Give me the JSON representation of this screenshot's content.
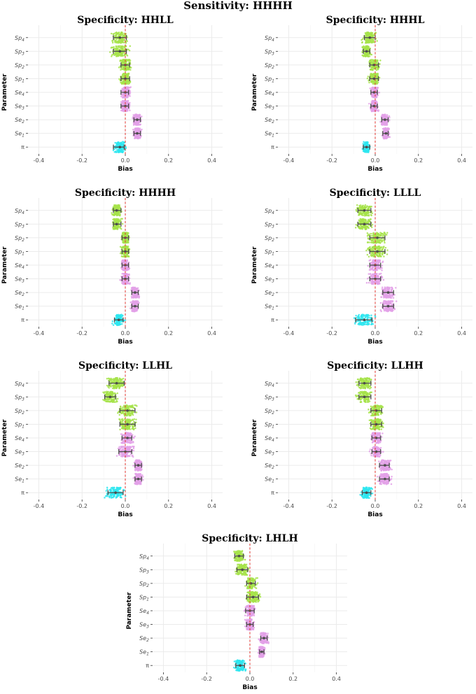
{
  "figure": {
    "main_title": "Sensitivity: HHHH"
  },
  "colors": {
    "Sp": "#a6e34a",
    "Se": "#e3a1e8",
    "pi": "#2ee6f0",
    "ref_line": "#e3342f",
    "errorbar": "#4d4d4d",
    "grid": "#ebebeb"
  },
  "chart_data": [
    {
      "type": "forest",
      "title": "Specificity: HHLL",
      "xlabel": "Bias",
      "ylabel": "Parameter",
      "xlim": [
        -0.45,
        0.45
      ],
      "xticks": [
        "-0.4",
        "-0.2",
        "0.0",
        "0.2",
        "0.4"
      ],
      "grid": true,
      "reference_line": 0,
      "parameters": [
        "Sp4",
        "Sp3",
        "Sp2",
        "Sp1",
        "Se4",
        "Se3",
        "Se2",
        "Se1",
        "π"
      ],
      "estimate": [
        -0.025,
        -0.025,
        0.0,
        0.0,
        0.0,
        0.0,
        0.055,
        0.055,
        -0.025
      ],
      "lower": [
        -0.055,
        -0.055,
        -0.02,
        -0.02,
        -0.02,
        -0.02,
        0.04,
        0.04,
        -0.055
      ],
      "upper": [
        0.005,
        0.005,
        0.02,
        0.02,
        0.015,
        0.015,
        0.07,
        0.07,
        -0.005
      ]
    },
    {
      "type": "forest",
      "title": "Specificity: HHHL",
      "xlabel": "Bias",
      "ylabel": "Parameter",
      "xlim": [
        -0.45,
        0.45
      ],
      "xticks": [
        "-0.4",
        "-0.2",
        "0.0",
        "0.2",
        "0.4"
      ],
      "grid": true,
      "reference_line": 0,
      "parameters": [
        "Sp4",
        "Sp3",
        "Sp2",
        "Sp1",
        "Se4",
        "Se3",
        "Se2",
        "Se1",
        "π"
      ],
      "estimate": [
        -0.025,
        -0.04,
        -0.005,
        -0.005,
        -0.005,
        -0.005,
        0.045,
        0.05,
        -0.04
      ],
      "lower": [
        -0.05,
        -0.055,
        -0.025,
        -0.025,
        -0.02,
        -0.02,
        0.03,
        0.035,
        -0.055
      ],
      "upper": [
        0.0,
        -0.025,
        0.015,
        0.015,
        0.01,
        0.01,
        0.06,
        0.06,
        -0.025
      ]
    },
    {
      "type": "forest",
      "title": "Specificity: HHHH",
      "xlabel": "Bias",
      "ylabel": "Parameter",
      "xlim": [
        -0.45,
        0.45
      ],
      "xticks": [
        "-0.4",
        "-0.2",
        "0.0",
        "0.2",
        "0.4"
      ],
      "grid": true,
      "reference_line": 0,
      "parameters": [
        "Sp4",
        "Sp3",
        "Sp2",
        "Sp1",
        "Se4",
        "Se3",
        "Se2",
        "Se1",
        "π"
      ],
      "estimate": [
        -0.04,
        -0.04,
        0.0,
        0.0,
        0.0,
        0.0,
        0.045,
        0.045,
        -0.03
      ],
      "lower": [
        -0.055,
        -0.055,
        -0.015,
        -0.015,
        -0.015,
        -0.015,
        0.03,
        0.03,
        -0.05
      ],
      "upper": [
        -0.02,
        -0.02,
        0.015,
        0.015,
        0.015,
        0.015,
        0.06,
        0.06,
        -0.01
      ]
    },
    {
      "type": "forest",
      "title": "Specificity: LLLL",
      "xlabel": "Bias",
      "ylabel": "Parameter",
      "xlim": [
        -0.45,
        0.45
      ],
      "xticks": [
        "-0.4",
        "-0.2",
        "0.0",
        "0.2",
        "0.4"
      ],
      "grid": true,
      "reference_line": 0,
      "parameters": [
        "Sp4",
        "Sp3",
        "Sp2",
        "Sp1",
        "Se4",
        "Se3",
        "Se2",
        "Se1",
        "π"
      ],
      "estimate": [
        -0.05,
        -0.05,
        0.01,
        0.01,
        0.0,
        0.0,
        0.06,
        0.06,
        -0.05
      ],
      "lower": [
        -0.08,
        -0.08,
        -0.025,
        -0.025,
        -0.025,
        -0.025,
        0.035,
        0.035,
        -0.09
      ],
      "upper": [
        -0.02,
        -0.02,
        0.045,
        0.045,
        0.025,
        0.025,
        0.085,
        0.085,
        -0.015
      ]
    },
    {
      "type": "forest",
      "title": "Specificity: LLHL",
      "xlabel": "Bias",
      "ylabel": "Parameter",
      "xlim": [
        -0.45,
        0.45
      ],
      "xticks": [
        "-0.4",
        "-0.2",
        "0.0",
        "0.2",
        "0.4"
      ],
      "grid": true,
      "reference_line": 0,
      "parameters": [
        "Sp4",
        "Sp3",
        "Sp2",
        "Sp1",
        "Se4",
        "Se3",
        "Se2",
        "Se1",
        "π"
      ],
      "estimate": [
        -0.04,
        -0.07,
        0.01,
        0.01,
        0.01,
        0.0,
        0.06,
        0.06,
        -0.045
      ],
      "lower": [
        -0.075,
        -0.095,
        -0.025,
        -0.025,
        -0.015,
        -0.03,
        0.045,
        0.045,
        -0.08
      ],
      "upper": [
        -0.005,
        -0.045,
        0.045,
        0.045,
        0.03,
        0.03,
        0.075,
        0.075,
        -0.01
      ]
    },
    {
      "type": "forest",
      "title": "Specificity: LLHH",
      "xlabel": "Bias",
      "ylabel": "Parameter",
      "xlim": [
        -0.45,
        0.45
      ],
      "xticks": [
        "-0.4",
        "-0.2",
        "0.0",
        "0.2",
        "0.4"
      ],
      "grid": true,
      "reference_line": 0,
      "parameters": [
        "Sp4",
        "Sp3",
        "Sp2",
        "Sp1",
        "Se4",
        "Se3",
        "Se2",
        "Se1",
        "π"
      ],
      "estimate": [
        -0.05,
        -0.05,
        0.005,
        0.005,
        0.005,
        0.005,
        0.045,
        0.045,
        -0.04
      ],
      "lower": [
        -0.075,
        -0.075,
        -0.02,
        -0.02,
        -0.015,
        -0.015,
        0.02,
        0.02,
        -0.06
      ],
      "upper": [
        -0.02,
        -0.02,
        0.03,
        0.03,
        0.025,
        0.025,
        0.065,
        0.065,
        -0.02
      ]
    },
    {
      "type": "forest",
      "title": "Specificity: LHLH",
      "xlabel": "Bias",
      "ylabel": "Parameter",
      "xlim": [
        -0.45,
        0.45
      ],
      "xticks": [
        "-0.4",
        "-0.2",
        "0.0",
        "0.2",
        "0.4"
      ],
      "grid": true,
      "reference_line": 0,
      "parameters": [
        "Sp4",
        "Sp3",
        "Sp2",
        "Sp1",
        "Se4",
        "Se3",
        "Se2",
        "Se1",
        "π"
      ],
      "estimate": [
        -0.05,
        -0.035,
        0.005,
        0.015,
        0.0,
        0.0,
        0.065,
        0.055,
        -0.045
      ],
      "lower": [
        -0.07,
        -0.06,
        -0.015,
        -0.015,
        -0.02,
        -0.015,
        0.05,
        0.045,
        -0.065
      ],
      "upper": [
        -0.03,
        -0.01,
        0.025,
        0.04,
        0.02,
        0.015,
        0.08,
        0.065,
        -0.025
      ]
    }
  ]
}
